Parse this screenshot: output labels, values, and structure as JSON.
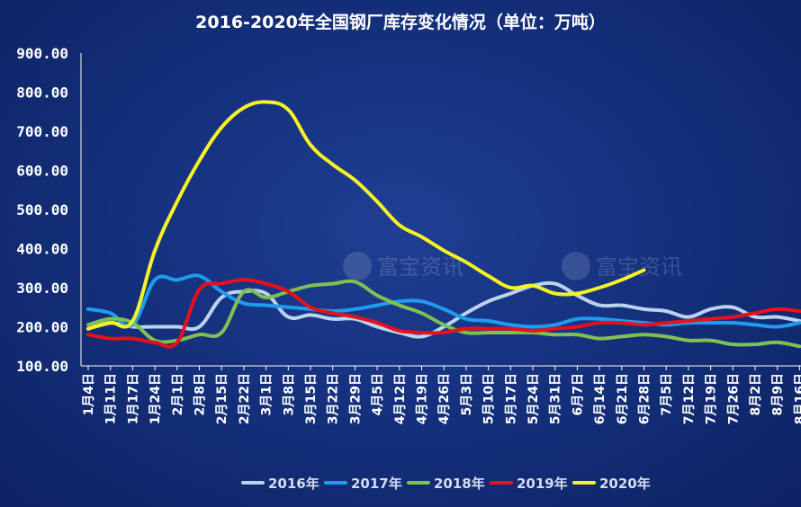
{
  "chart_data": {
    "type": "line",
    "title": "2016-2020年全国钢厂库存变化情况（单位：万吨）",
    "xlabel": "",
    "ylabel": "",
    "ylim": [
      100,
      900
    ],
    "yticks": [
      "100.00",
      "200.00",
      "300.00",
      "400.00",
      "500.00",
      "600.00",
      "700.00",
      "800.00",
      "900.00"
    ],
    "grid": false,
    "legend_position": "bottom",
    "watermark": "富宝资讯",
    "categories": [
      "1月4日",
      "1月11日",
      "1月17日",
      "1月24日",
      "2月1日",
      "2月8日",
      "2月15日",
      "2月22日",
      "3月1日",
      "3月8日",
      "3月15日",
      "3月22日",
      "3月29日",
      "4月5日",
      "4月12日",
      "4月19日",
      "4月26日",
      "5月3日",
      "5月10日",
      "5月17日",
      "5月24日",
      "5月31日",
      "6月7日",
      "6月14日",
      "6月21日",
      "6月28日",
      "7月5日",
      "7月12日",
      "7月19日",
      "7月26日",
      "8月2日",
      "8月9日",
      "8月16日"
    ],
    "series": [
      {
        "name": "2016年",
        "color": "#bcd3ee",
        "values": [
          195,
          210,
          200,
          200,
          200,
          200,
          275,
          290,
          285,
          225,
          230,
          220,
          220,
          200,
          185,
          175,
          200,
          235,
          265,
          285,
          305,
          310,
          280,
          255,
          255,
          245,
          240,
          225,
          245,
          250,
          225,
          225,
          215
        ]
      },
      {
        "name": "2017年",
        "color": "#1e9cf0",
        "values": [
          245,
          235,
          205,
          320,
          320,
          330,
          290,
          260,
          255,
          250,
          245,
          240,
          245,
          255,
          265,
          265,
          245,
          220,
          215,
          205,
          200,
          205,
          220,
          220,
          215,
          210,
          205,
          210,
          210,
          210,
          205,
          200,
          210
        ]
      },
      {
        "name": "2018年",
        "color": "#7fc150",
        "values": [
          205,
          220,
          210,
          165,
          165,
          180,
          185,
          290,
          275,
          290,
          305,
          310,
          315,
          280,
          255,
          235,
          205,
          185,
          185,
          185,
          185,
          180,
          180,
          170,
          175,
          180,
          175,
          165,
          165,
          155,
          155,
          160,
          150
        ]
      },
      {
        "name": "2019年",
        "color": "#e8101a",
        "values": [
          180,
          170,
          170,
          160,
          160,
          295,
          310,
          320,
          310,
          290,
          250,
          235,
          225,
          210,
          190,
          185,
          185,
          195,
          195,
          195,
          190,
          195,
          200,
          210,
          210,
          205,
          210,
          215,
          220,
          225,
          235,
          245,
          240
        ]
      },
      {
        "name": "2020年",
        "color": "#f6f225",
        "values": [
          195,
          210,
          215,
          395,
          520,
          625,
          710,
          760,
          775,
          755,
          665,
          615,
          575,
          520,
          460,
          430,
          395,
          365,
          330,
          300,
          305,
          285,
          285,
          300,
          320,
          345,
          null,
          null,
          null,
          null,
          null,
          null,
          null
        ]
      }
    ]
  }
}
